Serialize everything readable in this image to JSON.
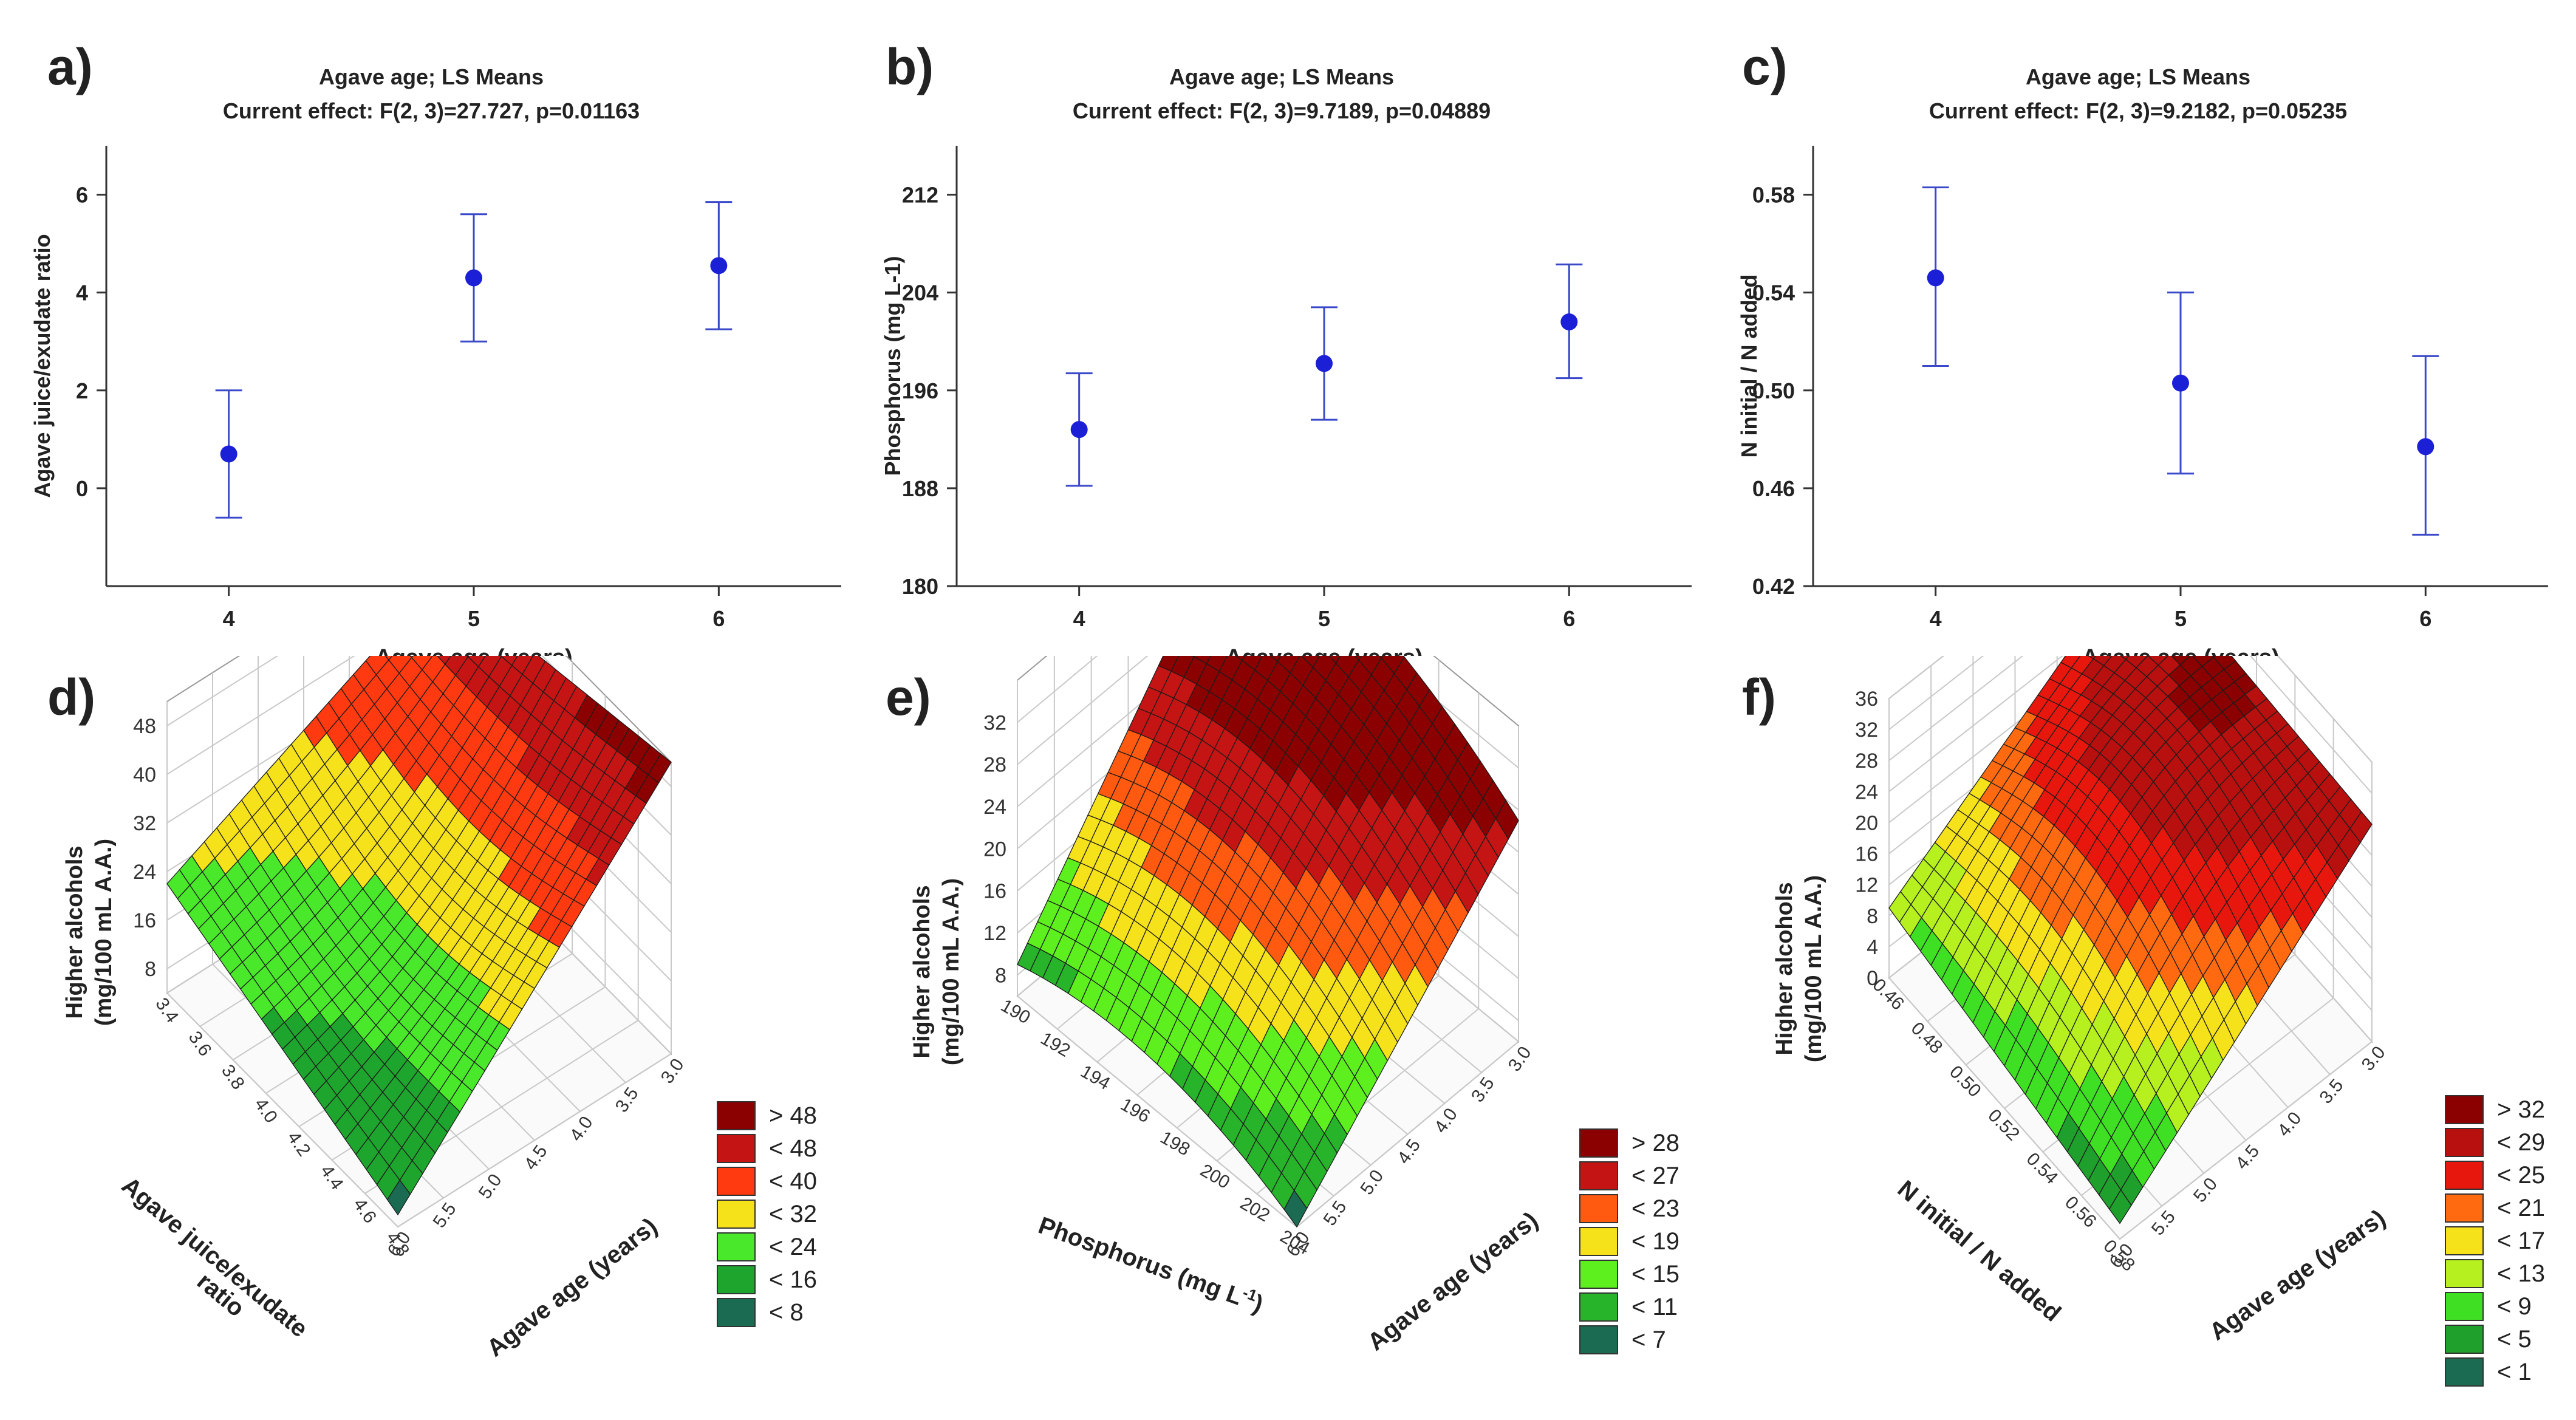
{
  "chart_data": [
    {
      "id": "a",
      "label": "a)",
      "type": "scatter",
      "title": "Agave age; LS Means",
      "subtitle": "Current effect: F(2, 3)=27.727, p=0.01163",
      "xlabel": "Agave age (years)",
      "ylabel": "Agave juice/exudate ratio",
      "categories": [
        "4",
        "5",
        "6"
      ],
      "means": [
        0.7,
        4.3,
        4.55
      ],
      "lower": [
        -0.6,
        3.0,
        3.25
      ],
      "upper": [
        2.0,
        5.6,
        5.85
      ],
      "ylim": [
        -2,
        7
      ],
      "yticks": [
        0,
        2,
        4,
        6
      ],
      "ytick_labels": [
        "0",
        "2",
        "4",
        "6"
      ]
    },
    {
      "id": "b",
      "label": "b)",
      "type": "scatter",
      "title": "Agave age; LS Means",
      "subtitle": "Current effect: F(2, 3)=9.7189, p=0.04889",
      "xlabel": "Agave age (years)",
      "ylabel": "Phosphorus (mg L-1)",
      "categories": [
        "4",
        "5",
        "6"
      ],
      "means": [
        192.8,
        198.2,
        201.6
      ],
      "lower": [
        188.2,
        193.6,
        197.0
      ],
      "upper": [
        197.4,
        202.8,
        206.3
      ],
      "ylim": [
        180,
        216
      ],
      "yticks": [
        180,
        188,
        196,
        204,
        212
      ],
      "ytick_labels": [
        "180",
        "188",
        "196",
        "204",
        "212"
      ]
    },
    {
      "id": "c",
      "label": "c)",
      "type": "scatter",
      "title": "Agave age; LS Means",
      "subtitle": "Current effect: F(2, 3)=9.2182, p=0.05235",
      "xlabel": "Agave age (years)",
      "ylabel": "N initial / N added",
      "categories": [
        "4",
        "5",
        "6"
      ],
      "means": [
        0.546,
        0.503,
        0.477
      ],
      "lower": [
        0.51,
        0.466,
        0.441
      ],
      "upper": [
        0.583,
        0.54,
        0.514
      ],
      "ylim": [
        0.42,
        0.6
      ],
      "yticks": [
        0.42,
        0.46,
        0.5,
        0.54,
        0.58
      ],
      "ytick_labels": [
        "0.42",
        "0.46",
        "0.50",
        "0.54",
        "0.58"
      ]
    },
    {
      "id": "d",
      "label": "d)",
      "type": "surface",
      "zlabel_line1": "Higher alcohols",
      "zlabel_line2": "(mg/100 mL A.A.)",
      "xlabel_line1": "Agave juice/exudate",
      "xlabel_line2": "ratio",
      "ylabel": "Agave age (years)",
      "x_ticks": [
        "3.4",
        "3.6",
        "3.8",
        "4.0",
        "4.2",
        "4.4",
        "4.6",
        "4.8"
      ],
      "y_ticks": [
        "3.0",
        "3.5",
        "4.0",
        "4.5",
        "5.0",
        "5.5",
        "6.0"
      ],
      "z_ticks": [
        "8",
        "16",
        "24",
        "32",
        "40",
        "48"
      ],
      "zlim": [
        4,
        52
      ],
      "surface_corners": {
        "near": 6,
        "left": 22,
        "right": 52,
        "back": 44
      },
      "legend": [
        "> 48",
        "< 48",
        "< 40",
        "< 32",
        "< 24",
        "< 16",
        "< 8"
      ],
      "legend_colors": [
        "#8b0000",
        "#c41414",
        "#ff3a10",
        "#f6e21a",
        "#49e82a",
        "#1ea52e",
        "#1a6b52"
      ]
    },
    {
      "id": "e",
      "label": "e)",
      "type": "surface",
      "zlabel_line1": "Higher alcohols",
      "zlabel_line2": "(mg/100 mL A.A.)",
      "xlabel_line1": "Phosphorus (mg L-1)",
      "xlabel_line2": "",
      "ylabel": "Agave age (years)",
      "x_ticks": [
        "190",
        "192",
        "194",
        "196",
        "198",
        "200",
        "202",
        "204"
      ],
      "y_ticks": [
        "3.0",
        "3.5",
        "4.0",
        "4.5",
        "5.0",
        "5.5",
        "6.0"
      ],
      "z_ticks": [
        "8",
        "12",
        "16",
        "20",
        "24",
        "28",
        "32"
      ],
      "zlim": [
        6,
        36
      ],
      "surface_corners": {
        "near": 6,
        "left": 9,
        "right": 27,
        "back": 36
      },
      "legend": [
        "> 28",
        "< 27",
        "< 23",
        "< 19",
        "< 15",
        "< 11",
        "< 7"
      ],
      "legend_colors": [
        "#8b0000",
        "#c41414",
        "#ff5a10",
        "#f6e21a",
        "#5ef01e",
        "#27b32a",
        "#1a6b52"
      ]
    },
    {
      "id": "f",
      "label": "f)",
      "type": "surface",
      "zlabel_line1": "Higher alcohols",
      "zlabel_line2": "(mg/100 mL A.A.)",
      "xlabel_line1": "N initial / N added",
      "xlabel_line2": "",
      "ylabel": "Agave age (years)",
      "x_ticks": [
        "0.46",
        "0.48",
        "0.50",
        "0.52",
        "0.54",
        "0.56",
        "0.58"
      ],
      "y_ticks": [
        "3.0",
        "3.5",
        "4.0",
        "4.5",
        "5.0",
        "5.5",
        "6.0"
      ],
      "z_ticks": [
        "0",
        "4",
        "8",
        "12",
        "16",
        "20",
        "24",
        "28",
        "32",
        "36"
      ],
      "zlim": [
        0,
        36
      ],
      "surface_corners": {
        "near": 2,
        "left": 9,
        "right": 28,
        "back": 30
      },
      "legend": [
        "> 32",
        "< 29",
        "< 25",
        "< 21",
        "< 17",
        "< 13",
        "< 9",
        "< 5",
        "< 1"
      ],
      "legend_colors": [
        "#8b0000",
        "#b80f0f",
        "#e8170e",
        "#ff6a10",
        "#f6e21a",
        "#b6f01e",
        "#3fe024",
        "#1f9f2c",
        "#1a6b52"
      ]
    }
  ]
}
